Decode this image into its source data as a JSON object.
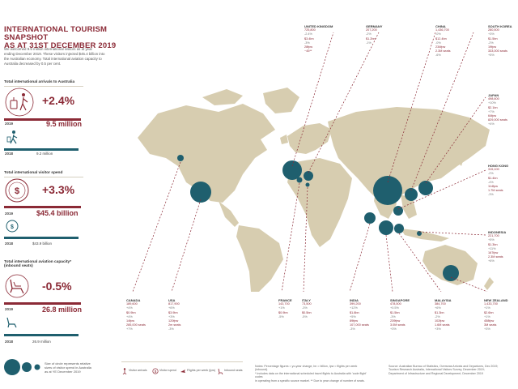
{
  "header": {
    "title_line1": "INTERNATIONAL TOURISM SNAPSHOT",
    "title_line2": "AS AT 31ST DECEMBER 2019"
  },
  "intro": {
    "line1": "We welcomed 9.5 million international visitors as at year",
    "line2": "ending December 2019. These visitors injected $45.4 billion into",
    "line3": "the Australian economy. Total international aviation capacity to",
    "line4": "Australia decreased by 0.5 per cent."
  },
  "arrivals": {
    "title": "Total international arrivals to Australia",
    "pct": "+2.4%",
    "year_2019": "2019",
    "value_2019": "9.5 million",
    "year_2018": "2018",
    "value_2018": "9.2 million"
  },
  "spend": {
    "title": "Total international visitor spend",
    "pct": "+3.3%",
    "year_2019": "2019",
    "value_2019": "$45.4 billion",
    "year_2018": "2018",
    "value_2018": "$43.9 billion"
  },
  "aviation": {
    "title_line1": "Total international aviation capacity*",
    "title_line2": "(inbound seats)",
    "pct": "-0.5%",
    "year_2019": "2019",
    "value_2019": "26.8 million",
    "year_2018": "2018",
    "value_2018": "26.9 million"
  },
  "legend": {
    "line1": "Size of circle represents relative",
    "line2": "sizes of visitor spend in Australia",
    "line3": "as at YE December 2019"
  },
  "bottom_legend": {
    "arrivals": "Visitor arrivals",
    "spend": "Visitor spend",
    "flights": "Flights per week (Ipw)",
    "seats": "Inbound seats"
  },
  "footnotes": {
    "notes_line1": "Notes: Percentage figures = yo-year change, bn = billion, Ipw = flights per week (inbound).",
    "notes_line2": "* Includes data on the international scheduled travel flights to Australia with 'code flight' codes",
    "notes_line3": "in operating from a specific source market. ** Due to year change of number of seats.",
    "source_line1": "Source: Australian Bureau of Statistics, Overseas Arrivals and Departures, Dec 2019;",
    "source_line2": "Tourism Research Australia, International Visitors Survey, December 2019;",
    "source_line3": "Department of Infrastructure and Regional Development, December 2019"
  },
  "colors": {
    "accent": "#8b2a36",
    "teal": "#1f5f6e",
    "land": "#d7cdb0",
    "dashes": "#8b2a36"
  },
  "markets": [
    {
      "name": "UNITED KINGDOM",
      "r1": "725,800",
      "r1s": "-2.4%",
      "r2": "$3.4bn",
      "r2s": "-3%",
      "r3": "28fpw",
      "r3s": "",
      "r4": "~45**",
      "r4s": ""
    },
    {
      "name": "GERMANY",
      "r1": "207,200",
      "r1s": "-2%",
      "r2": "$1.2bn",
      "r2s": "-1%",
      "r3": "",
      "r3s": "",
      "r4": "",
      "r4s": ""
    },
    {
      "name": "CHINA",
      "r1": "1,436,700",
      "r1s": "-0%",
      "r2": "$12.4bn",
      "r2s": "-0%",
      "r3": "234fpw",
      "r3s": "",
      "r4": "2.3M seats",
      "r4s": "-6%"
    },
    {
      "name": "SOUTH KOREA",
      "r1": "280,500",
      "r1s": "+3%",
      "r2": "$1.5bn",
      "r2s": "-2%",
      "r3": "19fpw",
      "r3s": "",
      "r4": "333,000 seats",
      "r4s": "+5%"
    },
    {
      "name": "JAPAN",
      "r1": "498,600",
      "r1s": "+10%",
      "r2": "$2.1bn",
      "r2s": "+7%",
      "r3": "64fpw",
      "r3s": "",
      "r4": "829,000 seats",
      "r4s": "+4%"
    },
    {
      "name": "HONG KONG",
      "r1": "315,100",
      "r1s": "-2%",
      "r2": "$1.4bn",
      "r2s": "-4%",
      "r3": "114fpw",
      "r3s": "",
      "r4": "1.7M seats",
      "r4s": "-3%"
    },
    {
      "name": "INDONESIA",
      "r1": "221,700",
      "r1s": "+5%",
      "r2": "$1.3bn",
      "r2s": "+11%",
      "r3": "167fpw",
      "r3s": "",
      "r4": "2.3M seats",
      "r4s": "+6%"
    },
    {
      "name": "CANADA",
      "r1": "189,600",
      "r1s": "+4%",
      "r2": "$0.9bn",
      "r2s": "+4%",
      "r3": "14fpw",
      "r3s": "",
      "r4": "285,000 seats",
      "r4s": "+7%"
    },
    {
      "name": "USA",
      "r1": "817,900",
      "r1s": "+6%",
      "r2": "$3.9bn",
      "r2s": "+3%",
      "r3": "120fpw",
      "r3s": "",
      "r4": "2m seats",
      "r4s": "-3%"
    },
    {
      "name": "FRANCE",
      "r1": "143,700",
      "r1s": "+1%",
      "r2": "$0.9bn",
      "r2s": "-5%",
      "r3": "",
      "r3s": "",
      "r4": "",
      "r4s": ""
    },
    {
      "name": "ITALY",
      "r1": "73,500",
      "r1s": "-3%",
      "r2": "$0.5bn",
      "r2s": "-5%",
      "r3": "",
      "r3s": "",
      "r4": "",
      "r4s": ""
    },
    {
      "name": "INDIA",
      "r1": "399,200",
      "r1s": "+12%",
      "r2": "$1.8bn",
      "r2s": "+5%",
      "r3": "89fpw",
      "r3s": "",
      "r4": "107,000 seats",
      "r4s": "-3%"
    },
    {
      "name": "SINGAPORE",
      "r1": "478,500",
      "r1s": "+0.5%",
      "r2": "$1.5bn",
      "r2s": "-3%",
      "r3": "239fpw",
      "r3s": "",
      "r4": "3.0M seats",
      "r4s": "+3%"
    },
    {
      "name": "MALAYSIA",
      "r1": "384,700",
      "r1s": "+6%",
      "r2": "$1.3bn",
      "r2s": "-2%",
      "r3": "102fpw",
      "r3s": "",
      "r4": "1.6M seats",
      "r4s": "+3%"
    },
    {
      "name": "NEW ZEALAND",
      "r1": "1,433,700",
      "r1s": "+1%",
      "r2": "$2.6bn",
      "r2s": "+1%",
      "r3": "458fpw",
      "r3s": "",
      "r4": "3M seats",
      "r4s": "+3%"
    }
  ]
}
